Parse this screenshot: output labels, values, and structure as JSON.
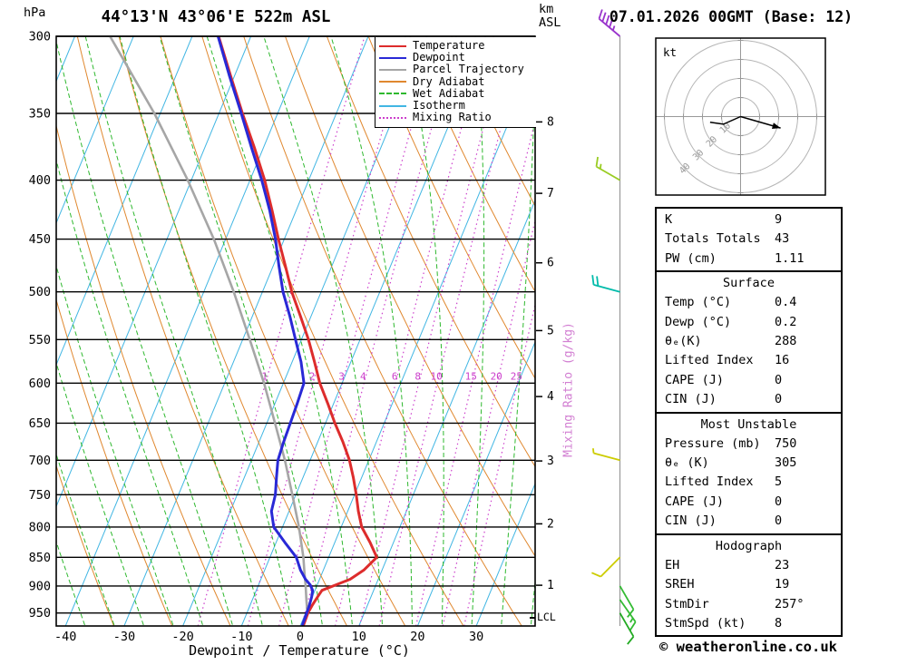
{
  "header": {
    "station_title": "44°13'N 43°06'E 522m ASL",
    "date_title": "07.01.2026 00GMT (Base: 12)"
  },
  "axes": {
    "pressure_unit": "hPa",
    "altitude_unit_line1": "km",
    "altitude_unit_line2": "ASL",
    "pressure_ticks": [
      300,
      350,
      400,
      450,
      500,
      550,
      600,
      650,
      700,
      750,
      800,
      850,
      900,
      950
    ],
    "temp_ticks": [
      -40,
      -30,
      -20,
      -10,
      0,
      10,
      20,
      30
    ],
    "km_ticks": [
      1,
      2,
      3,
      4,
      5,
      6,
      7,
      8
    ],
    "xlabel": "Dewpoint / Temperature (°C)",
    "mixing_ratio_axis_label": "Mixing Ratio (g/kg)",
    "lcl_label": "LCL"
  },
  "legend": [
    {
      "label": "Temperature",
      "color": "#dd2c2c",
      "style": "solid"
    },
    {
      "label": "Dewpoint",
      "color": "#2929d6",
      "style": "solid"
    },
    {
      "label": "Parcel Trajectory",
      "color": "#a6a6a6",
      "style": "solid"
    },
    {
      "label": "Dry Adiabat",
      "color": "#e0882f",
      "style": "solid"
    },
    {
      "label": "Wet Adiabat",
      "color": "#2eb82e",
      "style": "dashed"
    },
    {
      "label": "Isotherm",
      "color": "#41b6e3",
      "style": "solid"
    },
    {
      "label": "Mixing Ratio",
      "color": "#cc3fcc",
      "style": "dotted"
    }
  ],
  "chart_data": {
    "type": "line",
    "title": "Skew-T log-P sounding",
    "x_axis": {
      "label": "Dewpoint / Temperature (°C)",
      "range_c": [
        -40,
        40
      ]
    },
    "y_axis": {
      "label": "hPa",
      "range_hpa": [
        300,
        975
      ],
      "scale": "log"
    },
    "mixing_ratio_lines_g_kg": [
      1,
      2,
      3,
      4,
      6,
      8,
      10,
      15,
      20,
      25
    ],
    "series": [
      {
        "name": "Temperature",
        "color": "#dd2c2c",
        "points_p_t": [
          [
            972,
            0.5
          ],
          [
            950,
            0.4
          ],
          [
            935,
            0.6
          ],
          [
            920,
            0.9
          ],
          [
            908,
            1.2
          ],
          [
            898,
            3.2
          ],
          [
            888,
            5.2
          ],
          [
            872,
            6.9
          ],
          [
            850,
            8.2
          ],
          [
            825,
            6
          ],
          [
            800,
            3.5
          ],
          [
            775,
            1.8
          ],
          [
            750,
            0.3
          ],
          [
            725,
            -1.4
          ],
          [
            700,
            -3.3
          ],
          [
            675,
            -5.7
          ],
          [
            650,
            -8.4
          ],
          [
            625,
            -11
          ],
          [
            600,
            -13.8
          ],
          [
            575,
            -16.2
          ],
          [
            550,
            -18.8
          ],
          [
            525,
            -21.8
          ],
          [
            500,
            -25
          ],
          [
            475,
            -27.9
          ],
          [
            450,
            -31
          ],
          [
            425,
            -34.1
          ],
          [
            400,
            -37.5
          ],
          [
            375,
            -41.5
          ],
          [
            350,
            -46
          ],
          [
            325,
            -50.6
          ],
          [
            300,
            -55.5
          ]
        ]
      },
      {
        "name": "Dewpoint",
        "color": "#2929d6",
        "points_p_t": [
          [
            972,
            0.3
          ],
          [
            950,
            0.2
          ],
          [
            935,
            0.1
          ],
          [
            920,
            -0.1
          ],
          [
            908,
            -0.4
          ],
          [
            898,
            -1.2
          ],
          [
            888,
            -2.4
          ],
          [
            872,
            -3.9
          ],
          [
            850,
            -5.5
          ],
          [
            825,
            -8.5
          ],
          [
            800,
            -11.5
          ],
          [
            775,
            -13
          ],
          [
            750,
            -13.5
          ],
          [
            725,
            -14.5
          ],
          [
            700,
            -15.5
          ],
          [
            675,
            -15.8
          ],
          [
            650,
            -16
          ],
          [
            625,
            -16.2
          ],
          [
            600,
            -16.5
          ],
          [
            575,
            -18.5
          ],
          [
            550,
            -21
          ],
          [
            525,
            -23.6
          ],
          [
            500,
            -26.5
          ],
          [
            475,
            -29
          ],
          [
            450,
            -31.5
          ],
          [
            425,
            -34.5
          ],
          [
            400,
            -38
          ],
          [
            375,
            -42
          ],
          [
            350,
            -46.2
          ],
          [
            325,
            -50.8
          ],
          [
            300,
            -55.6
          ]
        ]
      },
      {
        "name": "Parcel Trajectory",
        "color": "#a6a6a6",
        "points_p_t": [
          [
            972,
            0.4
          ],
          [
            950,
            0.3
          ],
          [
            925,
            -0.8
          ],
          [
            900,
            -1.9
          ],
          [
            875,
            -3.1
          ],
          [
            850,
            -4.3
          ],
          [
            800,
            -7.2
          ],
          [
            750,
            -10.6
          ],
          [
            700,
            -14.3
          ],
          [
            650,
            -18.6
          ],
          [
            600,
            -23.3
          ],
          [
            550,
            -28.8
          ],
          [
            500,
            -34.9
          ],
          [
            450,
            -42
          ],
          [
            400,
            -50.6
          ],
          [
            350,
            -61
          ],
          [
            300,
            -74
          ]
        ]
      }
    ],
    "wind_barbs": [
      {
        "pressure": 300,
        "speed_kt": 45,
        "dir_deg": 310,
        "color": "#9933cc"
      },
      {
        "pressure": 400,
        "speed_kt": 15,
        "dir_deg": 300,
        "color": "#99cc22"
      },
      {
        "pressure": 500,
        "speed_kt": 20,
        "dir_deg": 285,
        "color": "#00bbaa"
      },
      {
        "pressure": 700,
        "speed_kt": 5,
        "dir_deg": 285,
        "color": "#cccc00"
      },
      {
        "pressure": 850,
        "speed_kt": 10,
        "dir_deg": 225,
        "color": "#cccc00"
      },
      {
        "pressure": 900,
        "speed_kt": 10,
        "dir_deg": 150,
        "color": "#33bb33"
      },
      {
        "pressure": 925,
        "speed_kt": 15,
        "dir_deg": 145,
        "color": "#33bb33"
      },
      {
        "pressure": 950,
        "speed_kt": 10,
        "dir_deg": 150,
        "color": "#22aa22"
      }
    ]
  },
  "hodograph": {
    "unit_label": "kt",
    "rings_kt": [
      10,
      20,
      30,
      40
    ],
    "storm_motion": {
      "dir_deg": 257,
      "speed_kt": 8
    },
    "trace_kt": [
      [
        -16,
        -3
      ],
      [
        -9,
        -4
      ],
      [
        0,
        0
      ]
    ],
    "arrow_kt": [
      21,
      -6
    ]
  },
  "stats_sections": [
    {
      "header": null,
      "rows": [
        [
          "K",
          "9"
        ],
        [
          "Totals Totals",
          "43"
        ],
        [
          "PW (cm)",
          "1.11"
        ]
      ]
    },
    {
      "header": "Surface",
      "rows": [
        [
          "Temp (°C)",
          "0.4"
        ],
        [
          "Dewp (°C)",
          "0.2"
        ],
        [
          "θₑ(K)",
          "288"
        ],
        [
          "Lifted Index",
          "16"
        ],
        [
          "CAPE (J)",
          "0"
        ],
        [
          "CIN (J)",
          "0"
        ]
      ]
    },
    {
      "header": "Most Unstable",
      "rows": [
        [
          "Pressure (mb)",
          "750"
        ],
        [
          "θₑ (K)",
          "305"
        ],
        [
          "Lifted Index",
          "5"
        ],
        [
          "CAPE (J)",
          "0"
        ],
        [
          "CIN (J)",
          "0"
        ]
      ]
    },
    {
      "header": "Hodograph",
      "rows": [
        [
          "EH",
          "23"
        ],
        [
          "SREH",
          "19"
        ],
        [
          "StmDir",
          "257°"
        ],
        [
          "StmSpd (kt)",
          "8"
        ]
      ]
    }
  ],
  "footer": {
    "copyright": "© weatheronline.co.uk"
  }
}
